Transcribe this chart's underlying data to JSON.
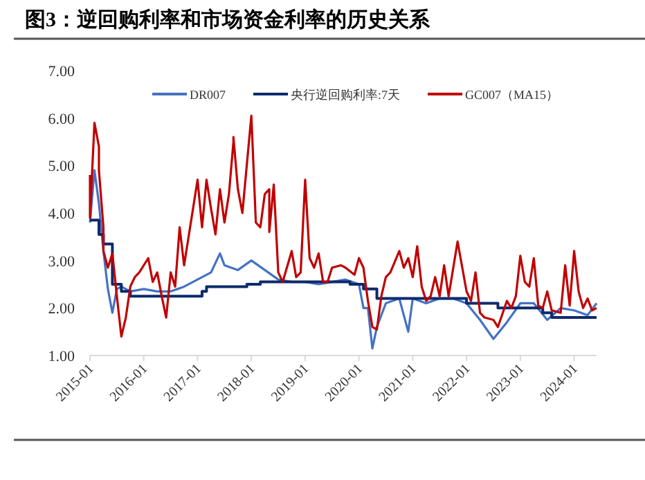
{
  "chart_data": {
    "type": "line",
    "title": "图3：逆回购利率和市场资金利率的历史关系",
    "xlim": [
      "2015-01",
      "2024-06"
    ],
    "xticks": [
      "2015-01",
      "2016-01",
      "2017-01",
      "2018-01",
      "2019-01",
      "2020-01",
      "2021-01",
      "2022-01",
      "2023-01",
      "2024-01"
    ],
    "ylim": [
      1,
      7
    ],
    "yticks": [
      {
        "value": 1,
        "label": "1.00"
      },
      {
        "value": 2,
        "label": "2.00"
      },
      {
        "value": 3,
        "label": "3.00"
      },
      {
        "value": 4,
        "label": "4.00"
      },
      {
        "value": 5,
        "label": "5.00"
      },
      {
        "value": 6,
        "label": "6.00"
      },
      {
        "value": 7,
        "label": "7.00"
      }
    ],
    "grid": false,
    "legend": "top",
    "series": [
      {
        "name": "DR007",
        "color": "#4472c4",
        "x": [
          "2015-01",
          "2015-02",
          "2015-03",
          "2015-04",
          "2015-05",
          "2015-06",
          "2015-07",
          "2015-08",
          "2015-10",
          "2016-01",
          "2016-04",
          "2016-07",
          "2016-10",
          "2017-01",
          "2017-04",
          "2017-06",
          "2017-07",
          "2017-10",
          "2018-01",
          "2018-04",
          "2018-07",
          "2018-10",
          "2019-01",
          "2019-04",
          "2019-07",
          "2019-10",
          "2020-01",
          "2020-02",
          "2020-03",
          "2020-04",
          "2020-05",
          "2020-07",
          "2020-10",
          "2020-12",
          "2021-01",
          "2021-04",
          "2021-07",
          "2021-10",
          "2022-01",
          "2022-04",
          "2022-07",
          "2022-10",
          "2023-01",
          "2023-04",
          "2023-07",
          "2023-10",
          "2024-01",
          "2024-04",
          "2024-06"
        ],
        "values": [
          3.8,
          4.9,
          4.2,
          3.2,
          2.4,
          1.9,
          2.4,
          2.45,
          2.35,
          2.4,
          2.35,
          2.35,
          2.45,
          2.6,
          2.75,
          3.15,
          2.9,
          2.8,
          3.0,
          2.8,
          2.6,
          2.55,
          2.55,
          2.5,
          2.55,
          2.6,
          2.5,
          2.0,
          2.0,
          1.15,
          1.6,
          2.1,
          2.2,
          1.5,
          2.2,
          2.1,
          2.2,
          2.2,
          2.1,
          1.75,
          1.35,
          1.7,
          2.1,
          2.1,
          1.75,
          2.0,
          1.95,
          1.85,
          2.1
        ]
      },
      {
        "name": "央行逆回购利率:7天",
        "color": "#0d2a6b",
        "x": [
          "2015-01",
          "2015-03",
          "2015-03",
          "2015-04",
          "2015-04",
          "2015-06",
          "2015-06",
          "2015-08",
          "2015-08",
          "2015-10",
          "2015-10",
          "2017-02",
          "2017-02",
          "2017-03",
          "2017-03",
          "2017-12",
          "2017-12",
          "2018-03",
          "2018-03",
          "2019-11",
          "2019-11",
          "2020-02",
          "2020-02",
          "2020-05",
          "2020-05",
          "2022-01",
          "2022-01",
          "2022-08",
          "2022-08",
          "2023-06",
          "2023-06",
          "2023-08",
          "2023-08",
          "2024-06"
        ],
        "values": [
          3.85,
          3.85,
          3.55,
          3.55,
          3.35,
          3.35,
          2.5,
          2.5,
          2.35,
          2.35,
          2.25,
          2.25,
          2.35,
          2.35,
          2.45,
          2.45,
          2.5,
          2.5,
          2.55,
          2.55,
          2.5,
          2.5,
          2.4,
          2.4,
          2.2,
          2.2,
          2.1,
          2.1,
          2.0,
          2.0,
          1.9,
          1.9,
          1.8,
          1.8
        ]
      },
      {
        "name": "GC007（MA15）",
        "color": "#c00000",
        "x": [
          "2015-01",
          "2015-01",
          "2015-02",
          "2015-03",
          "2015-03",
          "2015-04",
          "2015-04",
          "2015-05",
          "2015-06",
          "2015-07",
          "2015-08",
          "2015-09",
          "2015-10",
          "2015-11",
          "2015-12",
          "2016-02",
          "2016-03",
          "2016-04",
          "2016-05",
          "2016-06",
          "2016-07",
          "2016-08",
          "2016-09",
          "2016-10",
          "2017-01",
          "2017-02",
          "2017-03",
          "2017-04",
          "2017-05",
          "2017-06",
          "2017-07",
          "2017-08",
          "2017-09",
          "2017-09",
          "2017-10",
          "2017-11",
          "2018-01",
          "2018-02",
          "2018-03",
          "2018-04",
          "2018-05",
          "2018-05",
          "2018-06",
          "2018-07",
          "2018-08",
          "2018-10",
          "2018-11",
          "2018-12",
          "2019-01",
          "2019-02",
          "2019-03",
          "2019-04",
          "2019-05",
          "2019-06",
          "2019-07",
          "2019-09",
          "2019-10",
          "2019-12",
          "2020-01",
          "2020-02",
          "2020-03",
          "2020-04",
          "2020-05",
          "2020-06",
          "2020-07",
          "2020-08",
          "2020-10",
          "2020-11",
          "2020-12",
          "2021-01",
          "2021-02",
          "2021-03",
          "2021-04",
          "2021-05",
          "2021-06",
          "2021-07",
          "2021-08",
          "2021-09",
          "2021-11",
          "2022-01",
          "2022-02",
          "2022-03",
          "2022-04",
          "2022-05",
          "2022-07",
          "2022-08",
          "2022-10",
          "2022-11",
          "2022-12",
          "2023-01",
          "2023-02",
          "2023-03",
          "2023-04",
          "2023-05",
          "2023-06",
          "2023-07",
          "2023-08",
          "2023-10",
          "2023-11",
          "2023-12",
          "2024-01",
          "2024-02",
          "2024-03",
          "2024-04",
          "2024-05",
          "2024-06"
        ],
        "values": [
          4.8,
          3.9,
          5.9,
          5.4,
          4.9,
          3.7,
          3.2,
          2.85,
          3.15,
          2.25,
          1.4,
          1.8,
          2.45,
          2.65,
          2.75,
          3.05,
          2.55,
          2.75,
          2.25,
          1.8,
          2.75,
          2.45,
          3.7,
          2.9,
          4.7,
          3.7,
          4.7,
          4.1,
          3.55,
          4.5,
          3.8,
          4.4,
          5.5,
          5.6,
          4.5,
          4.0,
          6.05,
          3.8,
          3.7,
          4.4,
          4.5,
          3.6,
          4.6,
          2.75,
          2.55,
          3.2,
          2.65,
          2.75,
          4.7,
          3.05,
          2.85,
          3.15,
          2.55,
          2.55,
          2.85,
          2.9,
          2.85,
          2.7,
          3.05,
          2.85,
          2.15,
          1.6,
          1.55,
          2.25,
          2.65,
          2.75,
          3.2,
          2.85,
          3.05,
          2.65,
          3.3,
          2.45,
          2.15,
          2.25,
          2.65,
          2.25,
          2.9,
          2.25,
          3.4,
          2.35,
          2.15,
          2.75,
          1.9,
          1.8,
          1.75,
          1.6,
          2.15,
          2.0,
          2.25,
          3.1,
          2.55,
          2.45,
          3.05,
          2.05,
          2.0,
          2.35,
          1.95,
          1.9,
          2.9,
          2.05,
          3.2,
          2.35,
          2.0,
          2.2,
          1.95,
          2.0
        ]
      }
    ]
  }
}
